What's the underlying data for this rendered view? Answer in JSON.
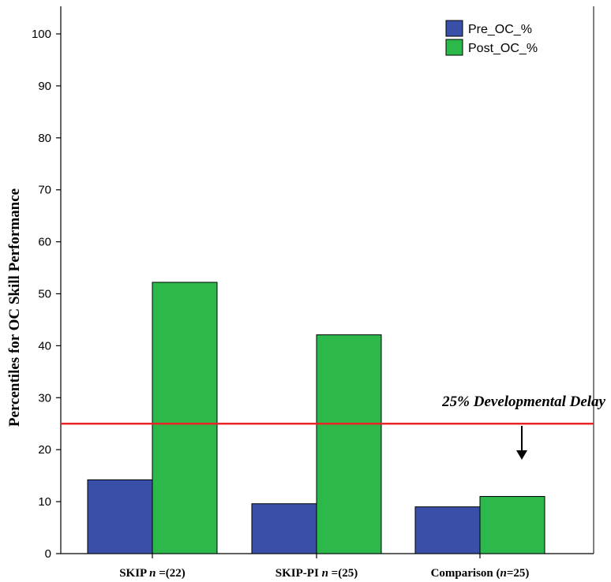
{
  "chart_data": {
    "type": "bar",
    "title": "",
    "ylabel": "Percentiles for OC Skill Performance",
    "xlabel": "",
    "ylim": [
      0,
      100
    ],
    "yticks": [
      0,
      10,
      20,
      30,
      40,
      50,
      60,
      70,
      80,
      90,
      100
    ],
    "categories": [
      {
        "main": "SKIP ",
        "italic": "n",
        "rest": " =(22)"
      },
      {
        "main": "SKIP-PI ",
        "italic": "n",
        "rest": " =(25)"
      },
      {
        "main": "Comparison (",
        "italic": "n",
        "rest": "=25)"
      }
    ],
    "series": [
      {
        "name": "Pre_OC_%",
        "color": "#3a4fa8",
        "values": [
          14.2,
          9.6,
          9.0
        ]
      },
      {
        "name": "Post_OC_%",
        "color": "#2db84b",
        "values": [
          52.2,
          42.1,
          11.0
        ]
      }
    ],
    "reference_line": {
      "value": 25,
      "color": "#e8262a",
      "label": "25% Developmental Delay"
    },
    "legend_position": "top-right",
    "grid": false
  }
}
